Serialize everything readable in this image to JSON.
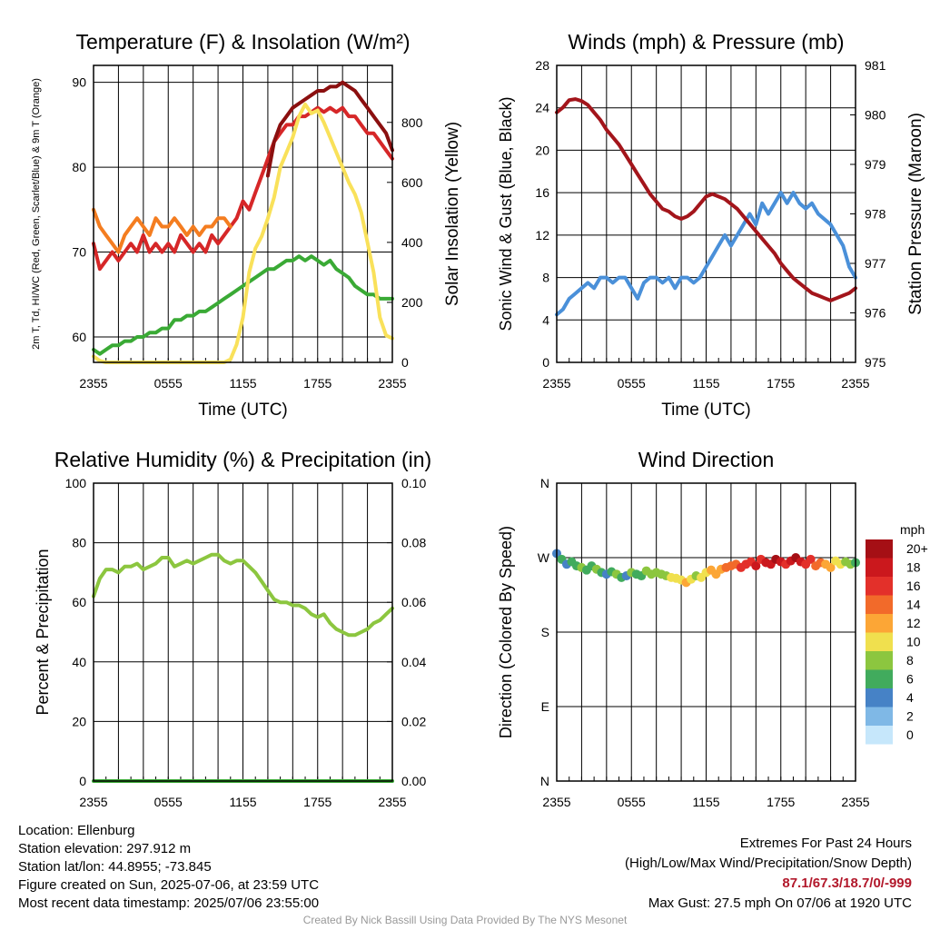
{
  "chart_data": [
    {
      "type": "line",
      "title": "Temperature (F) & Insolation (W/m²)",
      "xlabel": "Time (UTC)",
      "ylabel": "2m T, Td, HI/WC (Red, Green, Scarlet/Blue) & 9m T (Orange)",
      "y2label": "Solar Insolation (Yellow)",
      "xticks": [
        "2355",
        "0555",
        "1155",
        "1755",
        "2355"
      ],
      "ylim": [
        57,
        92
      ],
      "yticks": [
        60,
        70,
        80,
        90
      ],
      "y2lim": [
        0,
        990
      ],
      "y2ticks": [
        0,
        200,
        400,
        600,
        800
      ],
      "grid": true,
      "series": [
        {
          "color": "#d62728",
          "axis": "left",
          "x": [
            0,
            0.5,
            1,
            1.5,
            2,
            2.5,
            3,
            3.5,
            4,
            4.5,
            5,
            5.5,
            6,
            6.5,
            7,
            7.5,
            8,
            8.5,
            9,
            9.5,
            10,
            10.5,
            11,
            11.5,
            12,
            12.5,
            13,
            13.5,
            14,
            14.5,
            15,
            15.5,
            16,
            16.5,
            17,
            17.5,
            18,
            18.5,
            19,
            19.5,
            20,
            20.5,
            21,
            21.5,
            22,
            22.5,
            23,
            23.5,
            24
          ],
          "values": [
            71,
            68,
            69,
            70,
            69,
            70,
            71,
            70,
            72,
            70,
            71,
            70,
            71,
            70,
            72,
            71,
            70,
            71,
            70,
            72,
            71,
            72,
            73,
            74,
            76,
            75,
            77,
            79,
            81,
            83,
            84,
            85,
            85,
            86,
            86,
            86.5,
            87,
            86.5,
            87,
            86.5,
            87,
            86,
            86,
            85,
            84,
            84,
            83,
            82,
            81
          ]
        },
        {
          "color": "#f47d20",
          "axis": "left",
          "x": [
            0,
            0.5,
            1,
            1.5,
            2,
            2.5,
            3,
            3.5,
            4,
            4.5,
            5,
            5.5,
            6,
            6.5,
            7,
            7.5,
            8,
            8.5,
            9,
            9.5,
            10,
            10.5,
            11
          ],
          "values": [
            75,
            73,
            72,
            71,
            70,
            72,
            73,
            74,
            73,
            72,
            74,
            73,
            73,
            74,
            73,
            72,
            73,
            72,
            73,
            73,
            74,
            74,
            73
          ]
        },
        {
          "color": "#3aaa35",
          "axis": "left",
          "x": [
            0,
            0.5,
            1,
            1.5,
            2,
            2.5,
            3,
            3.5,
            4,
            4.5,
            5,
            5.5,
            6,
            6.5,
            7,
            7.5,
            8,
            8.5,
            9,
            9.5,
            10,
            10.5,
            11,
            11.5,
            12,
            12.5,
            13,
            13.5,
            14,
            14.5,
            15,
            15.5,
            16,
            16.5,
            17,
            17.5,
            18,
            18.5,
            19,
            19.5,
            20,
            20.5,
            21,
            21.5,
            22,
            22.5,
            23,
            23.5,
            24
          ],
          "values": [
            58.5,
            58,
            58.5,
            59,
            59,
            59.5,
            59.5,
            60,
            60,
            60.5,
            60.5,
            61,
            61,
            62,
            62,
            62.5,
            62.5,
            63,
            63,
            63.5,
            64,
            64.5,
            65,
            65.5,
            66,
            66.5,
            67,
            67.5,
            68,
            68,
            68.5,
            69,
            69,
            69.5,
            69,
            69.5,
            69,
            68.5,
            69,
            68,
            67.5,
            67,
            66,
            65.5,
            65,
            65,
            64.5,
            64.5,
            64.5
          ]
        },
        {
          "color": "#8b0f0f",
          "axis": "left",
          "x": [
            14,
            14.5,
            15,
            15.5,
            16,
            16.5,
            17,
            17.5,
            18,
            18.5,
            19,
            19.5,
            20,
            20.5,
            21,
            21.5,
            22,
            22.5,
            23,
            23.5,
            24
          ],
          "values": [
            79,
            83,
            85,
            86,
            87,
            87.5,
            88,
            88.5,
            89,
            89,
            89.5,
            89.5,
            90,
            89.5,
            89,
            88,
            87,
            86,
            85,
            84,
            82
          ]
        },
        {
          "color": "#f9e15a",
          "axis": "right",
          "x": [
            0,
            0.5,
            1,
            1.5,
            2,
            2.5,
            3,
            3.5,
            4,
            4.5,
            5,
            5.5,
            6,
            6.5,
            7,
            7.5,
            8,
            8.5,
            9,
            9.5,
            10,
            10.5,
            11,
            11.5,
            12,
            12.5,
            13,
            13.5,
            14,
            14.5,
            15,
            15.5,
            16,
            16.5,
            17,
            17.5,
            18,
            18.5,
            19,
            19.5,
            20,
            20.5,
            21,
            21.5,
            22,
            22.5,
            23,
            23.5,
            24
          ],
          "values": [
            20,
            5,
            0,
            0,
            0,
            0,
            0,
            0,
            0,
            0,
            0,
            0,
            0,
            0,
            0,
            0,
            0,
            0,
            0,
            0,
            0,
            0,
            10,
            60,
            150,
            300,
            380,
            420,
            480,
            550,
            650,
            700,
            750,
            820,
            860,
            830,
            840,
            800,
            750,
            700,
            650,
            600,
            560,
            500,
            400,
            300,
            150,
            90,
            80
          ]
        }
      ]
    },
    {
      "type": "line",
      "title": "Winds (mph) & Pressure (mb)",
      "xlabel": "Time (UTC)",
      "ylabel": "Sonic Wind & Gust (Blue, Black)",
      "y2label": "Station Pressure (Maroon)",
      "xticks": [
        "2355",
        "0555",
        "1155",
        "1755",
        "2355"
      ],
      "ylim": [
        0,
        28
      ],
      "yticks": [
        0,
        4,
        8,
        12,
        16,
        20,
        24,
        28
      ],
      "y2lim": [
        975,
        981
      ],
      "y2ticks": [
        975,
        976,
        977,
        978,
        979,
        980,
        981
      ],
      "grid": true,
      "series": [
        {
          "color": "#4a90d9",
          "axis": "left",
          "x": [
            0,
            0.5,
            1,
            1.5,
            2,
            2.5,
            3,
            3.5,
            4,
            4.5,
            5,
            5.5,
            6,
            6.5,
            7,
            7.5,
            8,
            8.5,
            9,
            9.5,
            10,
            10.5,
            11,
            11.5,
            12,
            12.5,
            13,
            13.5,
            14,
            14.5,
            15,
            15.5,
            16,
            16.5,
            17,
            17.5,
            18,
            18.5,
            19,
            19.5,
            20,
            20.5,
            21,
            21.5,
            22,
            22.5,
            23,
            23.5,
            24
          ],
          "values": [
            4.5,
            5,
            6,
            6.5,
            7,
            7.5,
            7,
            8,
            8,
            7.5,
            8,
            8,
            7,
            6,
            7.5,
            8,
            8,
            7.5,
            8,
            7,
            8,
            8,
            7.5,
            8,
            9,
            10,
            11,
            12,
            11,
            12,
            13,
            14,
            13,
            15,
            14,
            15,
            16,
            15,
            16,
            15,
            14.5,
            15,
            14,
            13.5,
            13,
            12,
            11,
            9,
            8
          ]
        },
        {
          "color": "#a3151b",
          "axis": "right",
          "x": [
            0,
            0.5,
            1,
            1.5,
            2,
            2.5,
            3,
            3.5,
            4,
            4.5,
            5,
            5.5,
            6,
            6.5,
            7,
            7.5,
            8,
            8.5,
            9,
            9.5,
            10,
            10.5,
            11,
            11.5,
            12,
            12.5,
            13,
            13.5,
            14,
            14.5,
            15,
            15.5,
            16,
            16.5,
            17,
            17.5,
            18,
            18.5,
            19,
            19.5,
            20,
            20.5,
            21,
            21.5,
            22,
            22.5,
            23,
            23.5,
            24
          ],
          "values": [
            980.05,
            980.15,
            980.3,
            980.32,
            980.28,
            980.2,
            980.05,
            979.9,
            979.7,
            979.55,
            979.4,
            979.2,
            979.0,
            978.8,
            978.6,
            978.4,
            978.25,
            978.1,
            978.05,
            977.95,
            977.9,
            977.95,
            978.05,
            978.2,
            978.35,
            978.4,
            978.35,
            978.3,
            978.2,
            978.1,
            977.95,
            977.8,
            977.65,
            977.5,
            977.35,
            977.2,
            977.0,
            976.85,
            976.7,
            976.6,
            976.5,
            976.4,
            976.35,
            976.3,
            976.25,
            976.3,
            976.35,
            976.4,
            976.5
          ]
        }
      ]
    },
    {
      "type": "line",
      "title": "Relative Humidity (%) & Precipitation (in)",
      "xlabel": "",
      "ylabel": "Percent & Precipitation",
      "xticks": [
        "2355",
        "0555",
        "1155",
        "1755",
        "2355"
      ],
      "ylim": [
        0,
        100
      ],
      "yticks": [
        0,
        20,
        40,
        60,
        80,
        100
      ],
      "y2lim": [
        0,
        0.1
      ],
      "y2ticks": [
        "0.00",
        "0.02",
        "0.04",
        "0.06",
        "0.08",
        "0.10"
      ],
      "grid": true,
      "series": [
        {
          "color": "#8cc63f",
          "axis": "left",
          "x": [
            0,
            0.5,
            1,
            1.5,
            2,
            2.5,
            3,
            3.5,
            4,
            4.5,
            5,
            5.5,
            6,
            6.5,
            7,
            7.5,
            8,
            8.5,
            9,
            9.5,
            10,
            10.5,
            11,
            11.5,
            12,
            12.5,
            13,
            13.5,
            14,
            14.5,
            15,
            15.5,
            16,
            16.5,
            17,
            17.5,
            18,
            18.5,
            19,
            19.5,
            20,
            20.5,
            21,
            21.5,
            22,
            22.5,
            23,
            23.5,
            24
          ],
          "values": [
            62,
            68,
            71,
            71,
            70,
            72,
            72,
            73,
            71,
            72,
            73,
            75,
            75,
            72,
            73,
            74,
            73,
            74,
            75,
            76,
            76,
            74,
            73,
            74,
            74,
            72,
            70,
            67,
            64,
            61,
            60,
            60,
            59,
            59,
            58,
            56,
            55,
            56,
            53,
            51,
            50,
            49,
            49,
            50,
            51,
            53,
            54,
            56,
            58
          ]
        },
        {
          "color": "#3aaa35",
          "axis": "right",
          "x": [
            0,
            24
          ],
          "values": [
            0,
            0
          ]
        }
      ]
    },
    {
      "type": "scatter",
      "title": "Wind Direction",
      "xlabel": "",
      "ylabel": "Direction (Colored By Speed)",
      "xticks": [
        "2355",
        "0555",
        "1155",
        "1755",
        "2355"
      ],
      "ylim": [
        0,
        360
      ],
      "yticks": [
        "N",
        "E",
        "S",
        "W",
        "N"
      ],
      "grid": true,
      "legend": {
        "title": "mph",
        "labels": [
          "20+",
          "18",
          "16",
          "14",
          "12",
          "10",
          "8",
          "6",
          "4",
          "2",
          "0"
        ],
        "colors": [
          "#a50f15",
          "#cb181d",
          "#e3302a",
          "#f26a2a",
          "#fca636",
          "#f0e04e",
          "#8cc63f",
          "#41ab5d",
          "#4682c6",
          "#7fb8e6",
          "#c6e7fb"
        ]
      },
      "points": {
        "x": [
          0,
          0.4,
          0.8,
          1.2,
          1.6,
          2,
          2.4,
          2.8,
          3.2,
          3.6,
          4,
          4.4,
          4.8,
          5.2,
          5.6,
          6,
          6.4,
          6.8,
          7.2,
          7.6,
          8,
          8.4,
          8.8,
          9.2,
          9.6,
          10,
          10.4,
          10.8,
          11.2,
          11.6,
          12,
          12.4,
          12.8,
          13.2,
          13.6,
          14,
          14.4,
          14.8,
          15.2,
          15.6,
          16,
          16.4,
          16.8,
          17.2,
          17.6,
          18,
          18.4,
          18.8,
          19.2,
          19.6,
          20,
          20.4,
          20.8,
          21.2,
          21.6,
          22,
          22.4,
          22.8,
          23.2,
          23.6,
          24
        ],
        "dir": [
          275,
          268,
          262,
          265,
          260,
          258,
          255,
          260,
          256,
          252,
          250,
          253,
          250,
          246,
          248,
          252,
          250,
          248,
          254,
          250,
          252,
          250,
          248,
          246,
          245,
          243,
          240,
          244,
          248,
          246,
          252,
          255,
          250,
          256,
          258,
          260,
          262,
          258,
          262,
          265,
          260,
          268,
          264,
          262,
          268,
          265,
          262,
          266,
          270,
          265,
          262,
          268,
          260,
          264,
          262,
          258,
          266,
          262,
          265,
          262,
          264
        ],
        "speed": [
          4,
          6,
          5,
          6,
          7,
          8,
          7,
          6,
          8,
          6,
          5,
          7,
          8,
          6,
          5,
          8,
          7,
          6,
          8,
          9,
          8,
          9,
          8,
          10,
          10,
          11,
          12,
          10,
          9,
          10,
          11,
          12,
          12,
          13,
          14,
          14,
          15,
          16,
          17,
          16,
          18,
          17,
          19,
          18,
          20,
          18,
          17,
          19,
          20,
          18,
          17,
          16,
          15,
          14,
          13,
          12,
          11,
          10,
          9,
          8,
          7
        ]
      }
    }
  ],
  "footer": {
    "location": "Location: Ellenburg",
    "elevation": "Station elevation: 297.912 m",
    "latlon": "Station lat/lon: 44.8955; -73.845",
    "created": "Figure created on Sun, 2025-07-06, at 23:59 UTC",
    "recent": "Most recent data timestamp: 2025/07/06 23:55:00",
    "extremes_title": "Extremes For Past 24 Hours",
    "extremes_desc": "(High/Low/Max Wind/Precipitation/Snow Depth)",
    "extremes_values": "87.1/67.3/18.7/0/-999",
    "max_gust": "Max Gust: 27.5 mph On 07/06 at 1920 UTC",
    "credit": "Created By Nick Bassill Using Data Provided By The NYS Mesonet"
  }
}
